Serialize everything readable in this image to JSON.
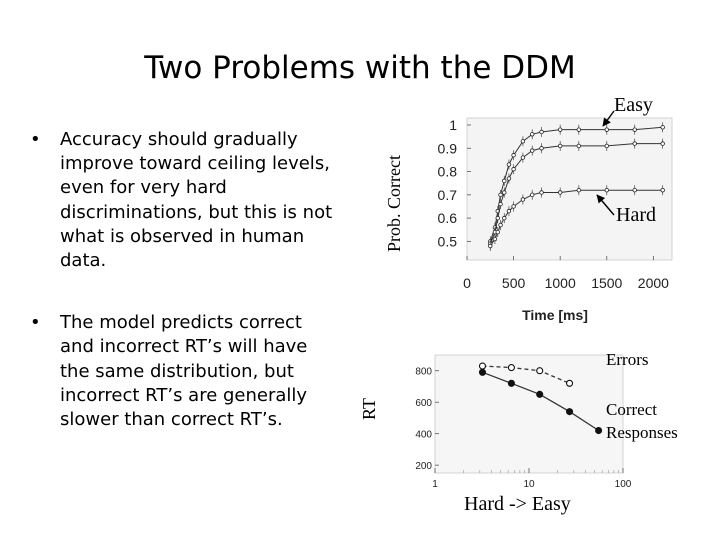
{
  "slide": {
    "title": "Two Problems with the DDM",
    "bullets": [
      "Accuracy should gradually improve toward ceiling levels, even for very hard discriminations, but this is not what is observed in human data.",
      "The model predicts correct and incorrect RT’s will have the same distribution, but incorrect RT’s are generally slower than correct RT’s."
    ],
    "bullet_glyph": "•"
  },
  "chart_data": [
    {
      "type": "line",
      "xlabel": "Time [ms]",
      "ylabel": "Prob. Correct",
      "xlim": [
        0,
        2200
      ],
      "ylim": [
        0.42,
        1.03
      ],
      "x_ticks": [
        0,
        500,
        1000,
        1500,
        2000
      ],
      "y_ticks": [
        0.5,
        0.6,
        0.7,
        0.8,
        0.9,
        1
      ],
      "x_tick_labels": [
        "0",
        "500",
        "1000",
        "1500",
        "2000"
      ],
      "y_tick_labels": [
        "0.5",
        "0.6",
        "0.7",
        "0.8",
        "0.9",
        "1"
      ],
      "annotations": [
        {
          "text": "Easy",
          "points_to": [
            1750,
            0.98
          ]
        },
        {
          "text": "Hard",
          "points_to": [
            1600,
            0.73
          ]
        }
      ],
      "series": [
        {
          "x": [
            250,
            300,
            330,
            360,
            400,
            450,
            500,
            600,
            700,
            800,
            1000,
            1200,
            1500,
            1800,
            2100
          ],
          "y": [
            0.5,
            0.56,
            0.63,
            0.7,
            0.76,
            0.83,
            0.87,
            0.93,
            0.96,
            0.97,
            0.98,
            0.98,
            0.98,
            0.98,
            0.99
          ]
        },
        {
          "x": [
            250,
            300,
            330,
            360,
            400,
            450,
            500,
            600,
            700,
            800,
            1000,
            1200,
            1500,
            1800,
            2100
          ],
          "y": [
            0.49,
            0.54,
            0.6,
            0.66,
            0.71,
            0.77,
            0.81,
            0.86,
            0.89,
            0.9,
            0.91,
            0.91,
            0.91,
            0.92,
            0.92
          ]
        },
        {
          "x": [
            250,
            300,
            330,
            360,
            400,
            450,
            500,
            600,
            700,
            800,
            1000,
            1200,
            1500,
            1800,
            2100
          ],
          "y": [
            0.48,
            0.51,
            0.54,
            0.57,
            0.6,
            0.63,
            0.65,
            0.68,
            0.7,
            0.71,
            0.71,
            0.72,
            0.72,
            0.72,
            0.72
          ]
        }
      ]
    },
    {
      "type": "line",
      "xlabel": "Hard -> Easy",
      "ylabel": "RT",
      "xscale": "log",
      "xlim": [
        1,
        100
      ],
      "ylim": [
        150,
        900
      ],
      "x_ticks": [
        1,
        10,
        100
      ],
      "y_ticks": [
        200,
        400,
        600,
        800
      ],
      "x_tick_labels": [
        "1",
        "10",
        "100"
      ],
      "y_tick_labels": [
        "200",
        "400",
        "600",
        "800"
      ],
      "series": [
        {
          "name": "Errors",
          "style": "dashed",
          "marker": "open-circle",
          "x": [
            3.2,
            6.5,
            13,
            27
          ],
          "y": [
            830,
            820,
            800,
            720
          ]
        },
        {
          "name": "Correct Responses",
          "style": "solid",
          "marker": "filled-circle",
          "x": [
            3.2,
            6.5,
            13,
            27,
            55
          ],
          "y": [
            790,
            720,
            650,
            540,
            420
          ]
        }
      ],
      "label_texts": [
        "Errors",
        "Correct\nResponses"
      ]
    }
  ]
}
